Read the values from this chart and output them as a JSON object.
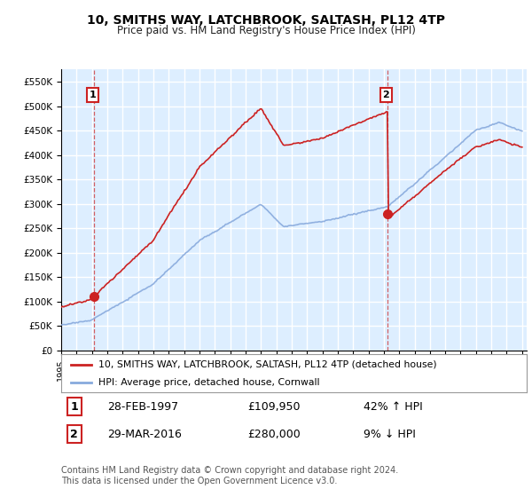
{
  "title": "10, SMITHS WAY, LATCHBROOK, SALTASH, PL12 4TP",
  "subtitle": "Price paid vs. HM Land Registry's House Price Index (HPI)",
  "plot_bg_color": "#ddeeff",
  "red_color": "#cc2222",
  "blue_color": "#88aadd",
  "ylim": [
    0,
    575000
  ],
  "yticks": [
    0,
    50000,
    100000,
    150000,
    200000,
    250000,
    300000,
    350000,
    400000,
    450000,
    500000,
    550000
  ],
  "ytick_labels": [
    "£0",
    "£50K",
    "£100K",
    "£150K",
    "£200K",
    "£250K",
    "£300K",
    "£350K",
    "£400K",
    "£450K",
    "£500K",
    "£550K"
  ],
  "xlim_min": 1995.0,
  "xlim_max": 2025.3,
  "sale1_year": 1997.15,
  "sale1_price": 109950,
  "sale1_label": "1",
  "sale2_year": 2016.24,
  "sale2_price": 280000,
  "sale2_label": "2",
  "legend_line1": "10, SMITHS WAY, LATCHBROOK, SALTASH, PL12 4TP (detached house)",
  "legend_line2": "HPI: Average price, detached house, Cornwall",
  "annotation1_date": "28-FEB-1997",
  "annotation1_price": "£109,950",
  "annotation1_hpi": "42% ↑ HPI",
  "annotation2_date": "29-MAR-2016",
  "annotation2_price": "£280,000",
  "annotation2_hpi": "9% ↓ HPI",
  "footer": "Contains HM Land Registry data © Crown copyright and database right 2024.\nThis data is licensed under the Open Government Licence v3.0."
}
